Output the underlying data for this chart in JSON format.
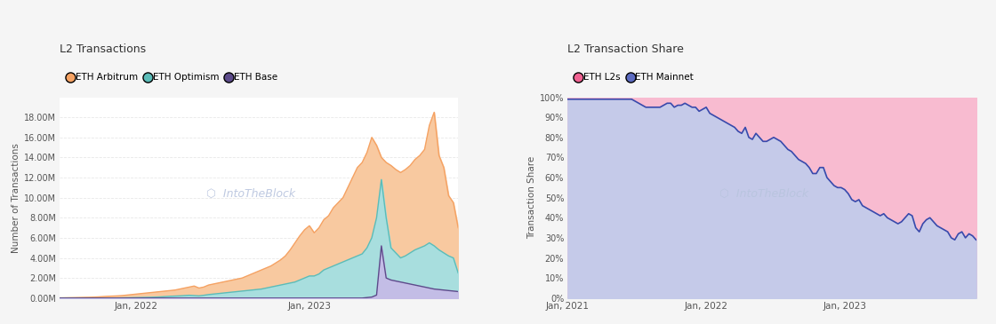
{
  "chart1_title": "L2 Transactions",
  "chart1_ylabel": "Number of Transactions",
  "chart1_legend": [
    "ETH Arbitrum",
    "ETH Optimism",
    "ETH Base"
  ],
  "chart1_line_colors": [
    "#f5a263",
    "#5bbcb8",
    "#5c4b8a"
  ],
  "chart1_fill_colors": [
    "#f8c9a0",
    "#a8dede",
    "#c8b8e8"
  ],
  "chart2_title": "L2 Transaction Share",
  "chart2_ylabel": "Transaction Share",
  "chart2_legend": [
    "ETH L2s",
    "ETH Mainnet"
  ],
  "chart2_line_color": "#3949ab",
  "chart2_fill_l2s": "#f8bbd0",
  "chart2_fill_mainnet": "#c5cae9",
  "chart2_legend_colors": [
    "#f06292",
    "#5c6bc0"
  ],
  "background_color": "#f5f5f5",
  "panel_color": "#ffffff",
  "grid_color": "#e8e8e8",
  "text_color": "#555555",
  "title_color": "#333333",
  "arbitrum_y": [
    0.02,
    0.03,
    0.04,
    0.05,
    0.06,
    0.07,
    0.08,
    0.1,
    0.12,
    0.15,
    0.18,
    0.2,
    0.22,
    0.25,
    0.3,
    0.35,
    0.4,
    0.45,
    0.5,
    0.55,
    0.6,
    0.65,
    0.7,
    0.75,
    0.8,
    0.9,
    1.0,
    1.1,
    1.2,
    1.0,
    1.1,
    1.3,
    1.4,
    1.5,
    1.6,
    1.7,
    1.8,
    1.9,
    2.0,
    2.2,
    2.4,
    2.6,
    2.8,
    3.0,
    3.2,
    3.5,
    3.8,
    4.2,
    4.8,
    5.5,
    6.2,
    6.8,
    7.2,
    6.5,
    7.0,
    7.8,
    8.2,
    9.0,
    9.5,
    10.0,
    11.0,
    12.0,
    13.0,
    13.5,
    14.5,
    16.0,
    15.2,
    14.0,
    13.5,
    13.2,
    12.8,
    12.5,
    12.8,
    13.2,
    13.8,
    14.2,
    14.8,
    17.2,
    18.5,
    14.2,
    13.0,
    10.2,
    9.5,
    7.0
  ],
  "optimism_y": [
    0.0,
    0.0,
    0.0,
    0.0,
    0.0,
    0.0,
    0.0,
    0.0,
    0.0,
    0.0,
    0.0,
    0.0,
    0.01,
    0.02,
    0.03,
    0.04,
    0.05,
    0.06,
    0.07,
    0.08,
    0.1,
    0.12,
    0.15,
    0.18,
    0.2,
    0.22,
    0.25,
    0.28,
    0.25,
    0.22,
    0.28,
    0.35,
    0.4,
    0.45,
    0.5,
    0.55,
    0.6,
    0.65,
    0.7,
    0.75,
    0.8,
    0.85,
    0.9,
    1.0,
    1.1,
    1.2,
    1.3,
    1.4,
    1.5,
    1.6,
    1.8,
    2.0,
    2.2,
    2.2,
    2.4,
    2.8,
    3.0,
    3.2,
    3.4,
    3.6,
    3.8,
    4.0,
    4.2,
    4.4,
    5.0,
    6.0,
    8.0,
    11.8,
    8.0,
    5.0,
    4.5,
    4.0,
    4.2,
    4.5,
    4.8,
    5.0,
    5.2,
    5.5,
    5.2,
    4.8,
    4.5,
    4.2,
    4.0,
    2.5
  ],
  "base_y": [
    0.0,
    0.0,
    0.0,
    0.0,
    0.0,
    0.0,
    0.0,
    0.0,
    0.0,
    0.0,
    0.0,
    0.0,
    0.0,
    0.0,
    0.0,
    0.0,
    0.0,
    0.0,
    0.0,
    0.0,
    0.0,
    0.0,
    0.0,
    0.0,
    0.0,
    0.0,
    0.0,
    0.0,
    0.0,
    0.0,
    0.0,
    0.0,
    0.0,
    0.0,
    0.0,
    0.0,
    0.0,
    0.0,
    0.0,
    0.0,
    0.0,
    0.0,
    0.0,
    0.0,
    0.0,
    0.0,
    0.0,
    0.0,
    0.0,
    0.0,
    0.0,
    0.0,
    0.0,
    0.0,
    0.0,
    0.0,
    0.0,
    0.0,
    0.0,
    0.0,
    0.0,
    0.0,
    0.0,
    0.0,
    0.05,
    0.1,
    0.3,
    5.2,
    2.0,
    1.8,
    1.7,
    1.6,
    1.5,
    1.4,
    1.3,
    1.2,
    1.1,
    1.0,
    0.9,
    0.85,
    0.8,
    0.75,
    0.7,
    0.65
  ],
  "mainnet_share_y": [
    99,
    99,
    99,
    99,
    99,
    99,
    99,
    99,
    99,
    99,
    99,
    99,
    99,
    99,
    99,
    99,
    99,
    99,
    99,
    98,
    97,
    96,
    95,
    95,
    95,
    95,
    95,
    96,
    97,
    97,
    95,
    96,
    96,
    97,
    96,
    95,
    95,
    93,
    94,
    95,
    92,
    91,
    90,
    89,
    88,
    87,
    86,
    85,
    83,
    82,
    85,
    80,
    79,
    82,
    80,
    78,
    78,
    79,
    80,
    79,
    78,
    76,
    74,
    73,
    71,
    69,
    68,
    67,
    65,
    62,
    62,
    65,
    65,
    60,
    58,
    56,
    55,
    55,
    54,
    52,
    49,
    48,
    49,
    46,
    45,
    44,
    43,
    42,
    41,
    42,
    40,
    39,
    38,
    37,
    38,
    40,
    42,
    41,
    35,
    33,
    37,
    39,
    40,
    38,
    36,
    35,
    34,
    33,
    30,
    29,
    32,
    33,
    30,
    32,
    31,
    29
  ],
  "chart1_n": 84,
  "chart1_jan2022_idx": 16,
  "chart1_jan2023_idx": 52,
  "chart2_n": 116,
  "chart2_jan2021_idx": 0,
  "chart2_jan2022_idx": 39,
  "chart2_jan2023_idx": 78
}
